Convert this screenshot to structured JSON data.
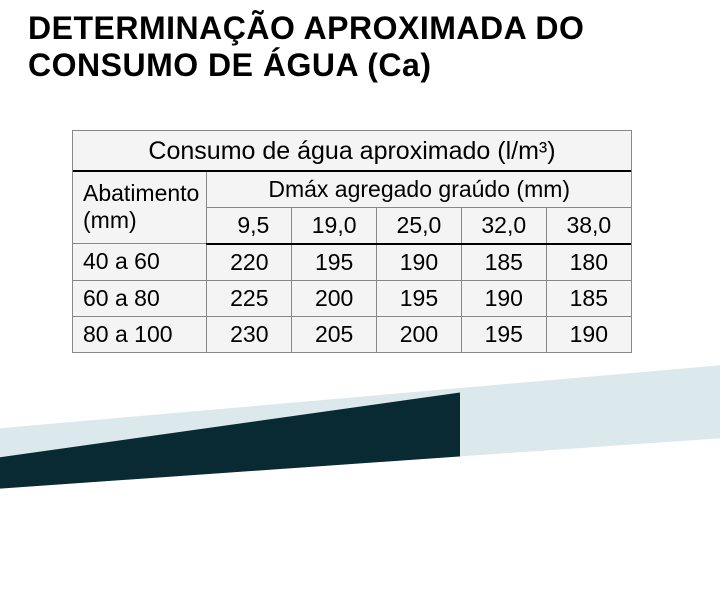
{
  "title_fontsize": 32,
  "title_line1": "DETERMINAÇÃO APROXIMADA DO",
  "title_line2": "CONSUMO DE ÁGUA (Ca)",
  "table": {
    "caption": "Consumo de água aproximado (l/m³)",
    "caption_fontsize": 25,
    "header_abatimento_line1": "Abatimento",
    "header_abatimento_line2": "(mm)",
    "header_dmax": "Dmáx agregado graúdo (mm)",
    "header_fontsize": 23,
    "cell_fontsize": 23,
    "background_color": "#f4f4f4",
    "border_color": "#888888",
    "rule_color": "#000000",
    "sizes": [
      "9,5",
      "19,0",
      "25,0",
      "32,0",
      "38,0"
    ],
    "rows": [
      {
        "label": "40 a 60",
        "values": [
          "220",
          "195",
          "190",
          "185",
          "180"
        ]
      },
      {
        "label": "60 a 80",
        "values": [
          "225",
          "200",
          "195",
          "190",
          "185"
        ]
      },
      {
        "label": "80 a 100",
        "values": [
          "230",
          "205",
          "200",
          "195",
          "190"
        ]
      }
    ]
  },
  "wedge": {
    "dark": "#0a2a33",
    "light": "#dce9ec"
  }
}
